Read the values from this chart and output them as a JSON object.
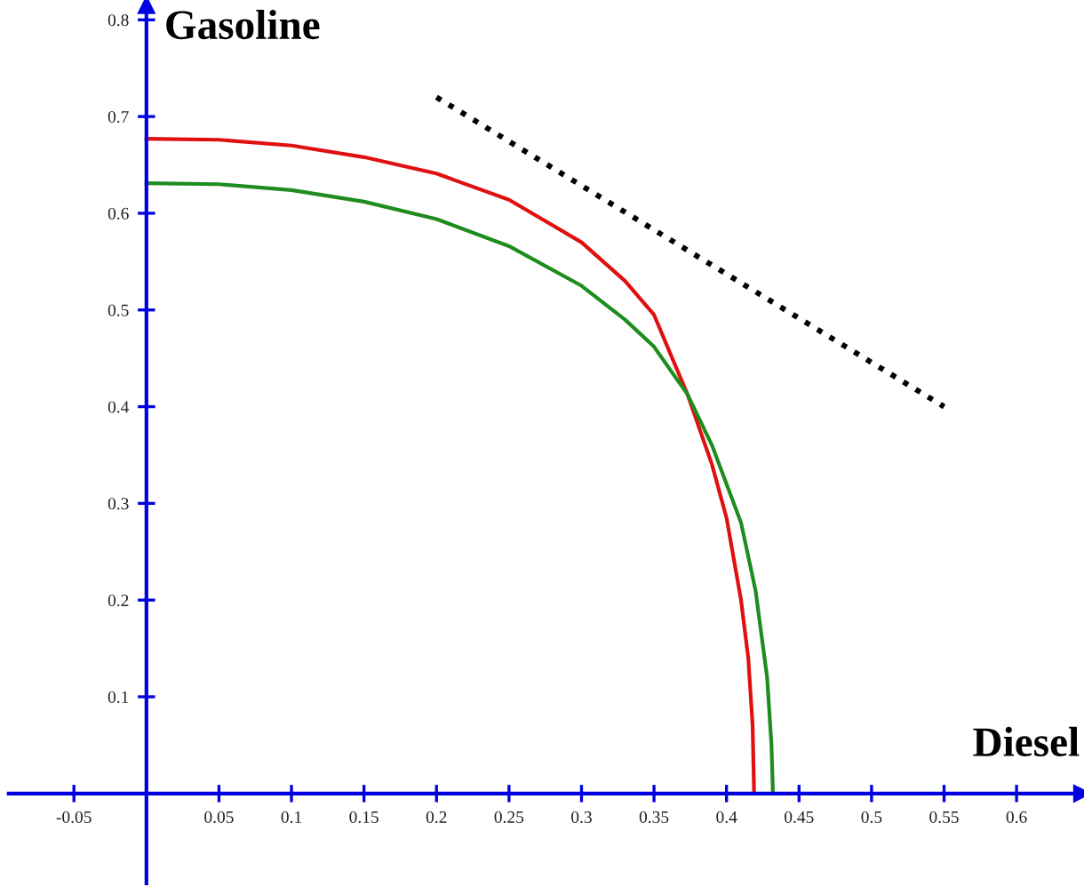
{
  "chart_data": {
    "type": "line",
    "xlabel": "Diesel",
    "ylabel": "Gasoline",
    "xlim": [
      -0.095,
      0.645
    ],
    "ylim": [
      -0.093,
      0.815
    ],
    "xticks": [
      -0.05,
      0.05,
      0.1,
      0.15,
      0.2,
      0.25,
      0.3,
      0.35,
      0.4,
      0.45,
      0.5,
      0.55,
      0.6
    ],
    "yticks": [
      0.1,
      0.2,
      0.3,
      0.4,
      0.5,
      0.6,
      0.7,
      0.8
    ],
    "grid": false,
    "legend": false,
    "series": [
      {
        "color": "#e01010",
        "line_style": "solid",
        "x": [
          0,
          0.05,
          0.1,
          0.15,
          0.2,
          0.25,
          0.3,
          0.33,
          0.35,
          0.373,
          0.39,
          0.4,
          0.41,
          0.415,
          0.418,
          0.419
        ],
        "values": [
          0.677,
          0.676,
          0.67,
          0.658,
          0.641,
          0.614,
          0.57,
          0.53,
          0.495,
          0.413,
          0.34,
          0.285,
          0.2,
          0.14,
          0.07,
          0.0
        ]
      },
      {
        "color": "#1e8c1e",
        "line_style": "solid",
        "x": [
          0,
          0.05,
          0.1,
          0.15,
          0.2,
          0.25,
          0.3,
          0.33,
          0.35,
          0.373,
          0.39,
          0.41,
          0.42,
          0.428,
          0.431,
          0.432
        ],
        "values": [
          0.631,
          0.63,
          0.624,
          0.612,
          0.594,
          0.566,
          0.525,
          0.49,
          0.462,
          0.413,
          0.36,
          0.28,
          0.21,
          0.12,
          0.05,
          0.0
        ]
      },
      {
        "color": "#000000",
        "line_style": "dotted",
        "x": [
          0.2,
          0.55
        ],
        "values": [
          0.72,
          0.4
        ]
      }
    ]
  }
}
